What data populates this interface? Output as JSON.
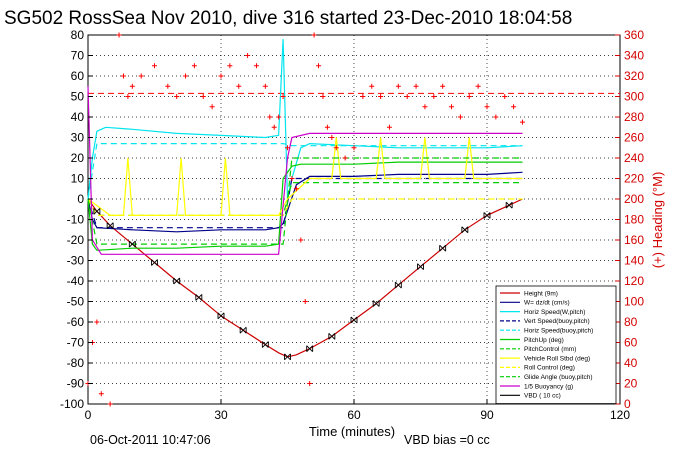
{
  "chart_data": {
    "type": "line",
    "title": "SG502 RossSea Nov 2010, dive 316 started 23-Dec-2010 18:04:58",
    "xlabel": "Time (minutes)",
    "ylabel": "",
    "ylabel_right": "(+) Heading (°M)",
    "xlim": [
      0,
      120
    ],
    "ylim": [
      -100,
      80
    ],
    "ylim_right": [
      0,
      360
    ],
    "xticks": [
      0,
      30,
      60,
      90,
      120
    ],
    "yticks": [
      -100,
      -90,
      -80,
      -70,
      -60,
      -50,
      -40,
      -30,
      -20,
      -10,
      0,
      10,
      20,
      30,
      40,
      50,
      60,
      70,
      80
    ],
    "yticks_right": [
      0,
      20,
      40,
      60,
      80,
      100,
      120,
      140,
      160,
      180,
      200,
      220,
      240,
      260,
      280,
      300,
      320,
      340,
      360
    ],
    "grid": true,
    "legend_position": "bottom-right",
    "footer_left": "06-Oct-2011 10:47:06",
    "footer_right": "VBD bias =0 cc",
    "colors": {
      "height": "#cc0000",
      "heading": "#ff0000",
      "w": "#00008b",
      "horz_speed": "#00e5ee",
      "pitch": "#00cd00",
      "roll": "#ffff00",
      "buoyancy": "#cc00cc",
      "vbd": "#000000",
      "right_axis": "#d40000"
    },
    "series": [
      {
        "name": "Height (9m)",
        "style": "solid",
        "color": "#cc0000",
        "x": [
          0,
          2,
          5,
          10,
          15,
          20,
          25,
          30,
          35,
          40,
          43,
          45,
          47,
          50,
          55,
          60,
          65,
          70,
          75,
          80,
          85,
          90,
          95,
          98
        ],
        "y": [
          0,
          -6,
          -13,
          -22,
          -31,
          -40,
          -48,
          -57,
          -64,
          -71,
          -75,
          -77,
          -76,
          -73,
          -67,
          -59,
          -51,
          -42,
          -33,
          -24,
          -15,
          -8,
          -3,
          0
        ]
      },
      {
        "name": "W= dz/dt (cm/s)",
        "style": "solid",
        "color": "#00008b",
        "x": [
          0,
          1,
          2,
          10,
          20,
          30,
          40,
          43,
          44,
          47,
          50,
          60,
          70,
          80,
          90,
          98
        ],
        "y": [
          0,
          -10,
          -14,
          -15,
          -16,
          -15,
          -15,
          -14,
          -12,
          7,
          11,
          11,
          12,
          12,
          12,
          13
        ]
      },
      {
        "name": "Horiz Speed(W,pitch)",
        "style": "solid",
        "color": "#00e5ee",
        "x": [
          0,
          1,
          2,
          4,
          10,
          20,
          30,
          40,
          43,
          44,
          45,
          46,
          48,
          50,
          60,
          70,
          80,
          90,
          98
        ],
        "y": [
          0,
          20,
          33,
          35,
          34,
          32,
          31,
          30,
          31,
          78,
          0,
          10,
          25,
          27,
          26,
          25,
          25,
          25,
          26
        ]
      },
      {
        "name": "Vert Speed(buoy,pitch)",
        "style": "dash",
        "color": "#00008b",
        "x": [
          0,
          2,
          44,
          46,
          98
        ],
        "y": [
          0,
          -14,
          -14,
          10,
          10
        ]
      },
      {
        "name": "Horiz Speed(buoy,pitch)",
        "style": "dash",
        "color": "#00e5ee",
        "x": [
          0,
          2,
          44,
          46,
          98
        ],
        "y": [
          0,
          27,
          27,
          26,
          26
        ]
      },
      {
        "name": "PitchUp (deg)",
        "style": "solid",
        "color": "#00cd00",
        "x": [
          0,
          1,
          2,
          10,
          20,
          30,
          40,
          43,
          44,
          46,
          48,
          60,
          70,
          80,
          90,
          98
        ],
        "y": [
          0,
          -22,
          -25,
          -24,
          -24,
          -23,
          -23,
          -22,
          10,
          16,
          17,
          17,
          18,
          18,
          18,
          18
        ]
      },
      {
        "name": "PitchControl (mm)",
        "style": "dash",
        "color": "#00cd00",
        "x": [
          0,
          2,
          44,
          46,
          98
        ],
        "y": [
          0,
          -8,
          -8,
          8,
          8
        ]
      },
      {
        "name": "Vehicle Roll Stbd (deg)",
        "style": "solid",
        "color": "#ffff00",
        "x": [
          0,
          5,
          8,
          9,
          10,
          20,
          21,
          22,
          30,
          31,
          32,
          40,
          43,
          45,
          50,
          55,
          56,
          57,
          65,
          66,
          67,
          75,
          76,
          77,
          85,
          86,
          87,
          95,
          98
        ],
        "y": [
          0,
          -8,
          -8,
          20,
          -8,
          -8,
          20,
          -8,
          -8,
          20,
          -8,
          -8,
          -8,
          0,
          10,
          10,
          30,
          10,
          10,
          30,
          10,
          10,
          30,
          10,
          10,
          30,
          10,
          10,
          10
        ]
      },
      {
        "name": "Roll Control (deg)",
        "style": "dash",
        "color": "#ffff00",
        "x": [
          0,
          2,
          44,
          46,
          98
        ],
        "y": [
          0,
          -8,
          -8,
          0,
          0
        ]
      },
      {
        "name": "Glide Angle (buoy,pitch)",
        "style": "dash",
        "color": "#00cd00",
        "x": [
          0,
          2,
          44,
          46,
          98
        ],
        "y": [
          0,
          -22,
          -22,
          20,
          20
        ]
      },
      {
        "name": "1/5 Buoyancy (g)",
        "style": "solid",
        "color": "#cc00cc",
        "x": [
          0,
          1,
          3,
          10,
          20,
          30,
          40,
          43,
          45,
          46,
          50,
          60,
          70,
          80,
          90,
          98
        ],
        "y": [
          55,
          -20,
          -27,
          -27,
          -27,
          -27,
          -27,
          -27,
          20,
          30,
          32,
          32,
          32,
          32,
          32,
          32
        ]
      },
      {
        "name": "VBD ( 10 cc)",
        "style": "markers",
        "color": "#000000",
        "x": [
          2,
          5,
          10,
          15,
          20,
          25,
          30,
          35,
          40,
          45,
          50,
          55,
          60,
          65,
          70,
          75,
          80,
          85,
          90,
          95
        ],
        "y": [
          -6,
          -13,
          -22,
          -31,
          -40,
          -48,
          -57,
          -64,
          -71,
          -77,
          -73,
          -67,
          -59,
          -51,
          -42,
          -33,
          -24,
          -15,
          -8,
          -3
        ]
      }
    ],
    "heading_series": {
      "name": "(+) Heading (°M)",
      "axis": "right",
      "style": "plus-markers",
      "color": "#ff0000",
      "x": [
        0,
        1,
        2,
        3,
        5,
        7,
        8,
        9,
        10,
        12,
        15,
        18,
        20,
        22,
        24,
        26,
        28,
        30,
        32,
        34,
        36,
        38,
        40,
        41,
        42,
        43,
        44,
        45,
        46,
        47,
        48,
        49,
        50,
        51,
        52,
        53,
        54,
        55,
        56,
        58,
        60,
        62,
        64,
        66,
        68,
        70,
        72,
        74,
        76,
        78,
        80,
        82,
        84,
        86,
        88,
        90,
        92,
        94,
        96,
        98
      ],
      "y": [
        20,
        60,
        80,
        10,
        0,
        360,
        320,
        300,
        310,
        320,
        330,
        310,
        300,
        320,
        330,
        300,
        290,
        320,
        330,
        310,
        340,
        330,
        310,
        280,
        270,
        280,
        300,
        250,
        220,
        210,
        160,
        100,
        20,
        360,
        330,
        300,
        270,
        260,
        250,
        240,
        250,
        300,
        310,
        300,
        270,
        310,
        300,
        310,
        290,
        300,
        310,
        290,
        280,
        300,
        310,
        290,
        280,
        300,
        290,
        275
      ],
      "reference_line": 303
    }
  }
}
